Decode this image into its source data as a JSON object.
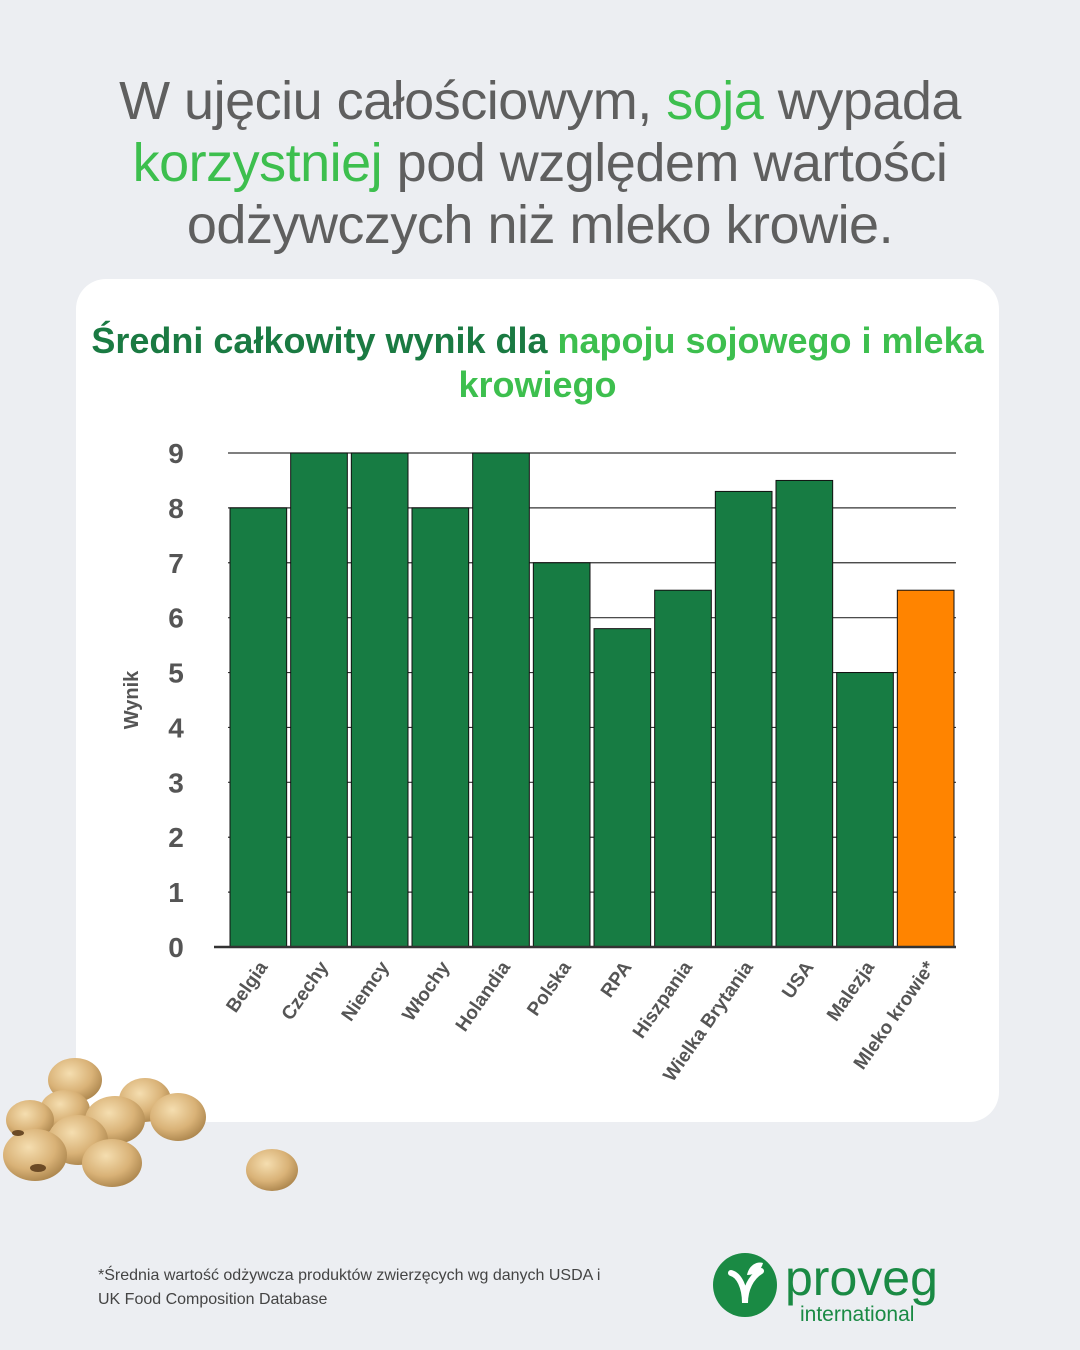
{
  "headline": {
    "part1": "W ujęciu całościowym, ",
    "hl1": "soja",
    "part2": " wypada ",
    "hl2": "korzystniej",
    "part3": " pod względem wartości odżywczych niż mleko krowie."
  },
  "chart_data": {
    "type": "bar",
    "title_part1": "Średni całkowity wynik dla ",
    "title_highlight": "napoju sojowego i mleka krowiego",
    "ylabel": "Wynik",
    "ylim": [
      0,
      9
    ],
    "yticks": [
      0,
      1,
      2,
      3,
      4,
      5,
      6,
      7,
      8,
      9
    ],
    "categories": [
      "Belgia",
      "Czechy",
      "Niemcy",
      "Włochy",
      "Holandia",
      "Polska",
      "RPA",
      "Hiszpania",
      "Wielka Brytania",
      "USA",
      "Malezja",
      "Mleko krowie*"
    ],
    "values": [
      8,
      9,
      9,
      8,
      9,
      7,
      5.8,
      6.5,
      8.3,
      8.5,
      5,
      6.5
    ],
    "colors": [
      "#177c43",
      "#177c43",
      "#177c43",
      "#177c43",
      "#177c43",
      "#177c43",
      "#177c43",
      "#177c43",
      "#177c43",
      "#177c43",
      "#177c43",
      "#ff8400"
    ],
    "grid": true
  },
  "footnote": "*Średnia wartość odżywcza produktów zwierzęcych wg danych USDA i UK Food Composition Database",
  "logo": {
    "brand": "proveg",
    "sub": "international"
  },
  "colors": {
    "accent_green": "#3dbf4e",
    "bar_green": "#177c43",
    "dark_green": "#1a7a42",
    "orange": "#ff8400"
  }
}
